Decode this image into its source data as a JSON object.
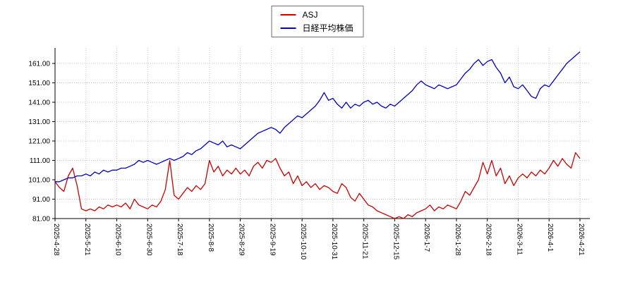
{
  "legend": {
    "position": "top-center",
    "items": [
      {
        "label": "ASJ",
        "color": "#cc0000"
      },
      {
        "label": "日経平均株価",
        "color": "#0000cc"
      }
    ]
  },
  "chart_data": {
    "type": "line",
    "title": "",
    "xlabel": "",
    "ylabel": "",
    "grid": true,
    "legend_position": "top-center",
    "ylim": [
      81,
      169
    ],
    "y_tick_values": [
      81,
      91,
      101,
      111,
      121,
      131,
      141,
      151,
      161
    ],
    "y_tick_labels": [
      "81.00",
      "91.00",
      "101.00",
      "111.00",
      "121.00",
      "131.00",
      "141.00",
      "151.00",
      "161.00"
    ],
    "ticks_every_n_points": 7,
    "x_tick_labels": [
      "2025-4-28",
      "2025-5-21",
      "2025-6-10",
      "2025-6-30",
      "2025-7-18",
      "2025-8-8",
      "2025-8-29",
      "2025-9-19",
      "2025-10-10",
      "2025-10-31",
      "2025-11-21",
      "2025-12-15",
      "2026-1-7",
      "2026-1-28",
      "2026-2-18",
      "2026-3-11",
      "2026-4-1",
      "2026-4-21"
    ],
    "series": [
      {
        "name": "ASJ",
        "color": "#cc0000",
        "values": [
          100,
          97,
          95,
          103,
          107,
          98,
          86,
          85,
          86,
          85,
          87,
          86,
          88,
          87,
          88,
          87,
          89,
          86,
          91,
          88,
          87,
          86,
          88,
          87,
          90,
          96,
          111,
          93,
          91,
          94,
          97,
          95,
          98,
          96,
          99,
          111,
          105,
          108,
          103,
          106,
          104,
          107,
          104,
          106,
          103,
          108,
          110,
          107,
          111,
          110,
          112,
          107,
          103,
          105,
          99,
          103,
          98,
          100,
          97,
          99,
          96,
          98,
          97,
          95,
          94,
          99,
          97,
          92,
          90,
          94,
          91,
          88,
          87,
          85,
          84,
          83,
          82,
          81,
          82,
          81,
          83,
          82,
          84,
          85,
          86,
          88,
          85,
          87,
          86,
          88,
          87,
          86,
          90,
          95,
          93,
          97,
          101,
          110,
          104,
          111,
          103,
          107,
          99,
          103,
          98,
          102,
          104,
          102,
          105,
          103,
          106,
          104,
          107,
          111,
          108,
          112,
          109,
          107,
          115,
          112
        ]
      },
      {
        "name": "日経平均株価",
        "color": "#0000cc",
        "values": [
          100,
          100,
          101,
          102,
          102,
          103,
          103,
          104,
          103,
          105,
          104,
          106,
          105,
          106,
          106,
          107,
          107,
          108,
          109,
          111,
          110,
          111,
          110,
          109,
          110,
          111,
          112,
          111,
          112,
          113,
          115,
          114,
          116,
          117,
          119,
          121,
          120,
          119,
          121,
          118,
          119,
          118,
          117,
          119,
          121,
          123,
          125,
          126,
          127,
          128,
          127,
          125,
          128,
          130,
          132,
          134,
          133,
          135,
          137,
          139,
          142,
          146,
          142,
          143,
          140,
          138,
          141,
          138,
          140,
          139,
          141,
          142,
          140,
          141,
          139,
          138,
          140,
          139,
          141,
          143,
          145,
          147,
          150,
          152,
          150,
          149,
          148,
          150,
          149,
          148,
          149,
          150,
          153,
          156,
          158,
          161,
          163,
          160,
          162,
          163,
          159,
          156,
          151,
          154,
          149,
          148,
          150,
          147,
          144,
          143,
          148,
          150,
          149,
          152,
          155,
          158,
          161,
          163,
          165,
          167
        ]
      }
    ]
  }
}
